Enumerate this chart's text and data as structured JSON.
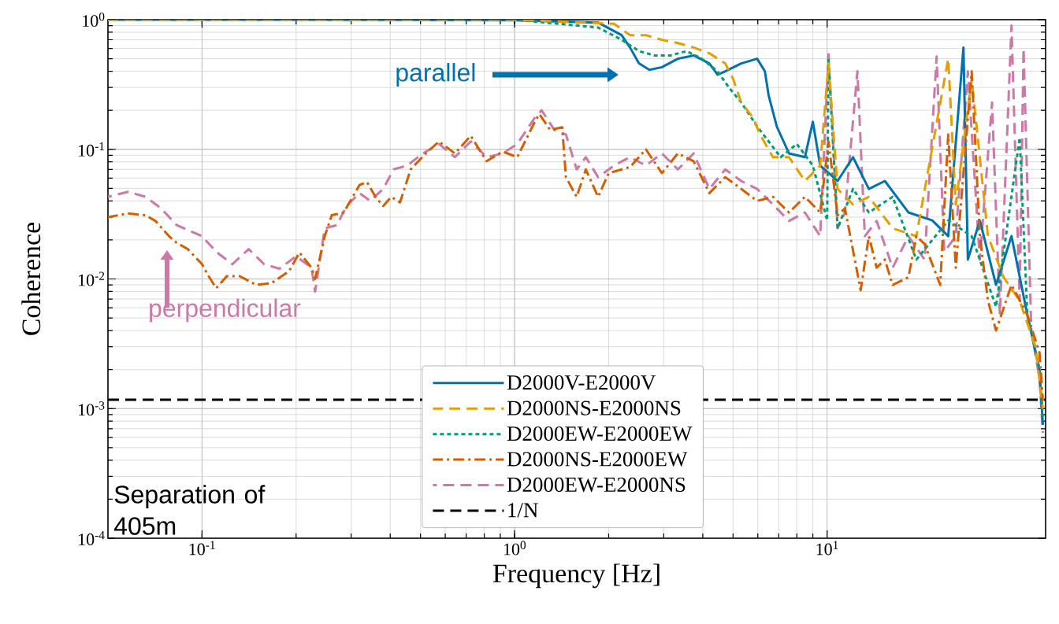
{
  "chart_data": {
    "type": "line",
    "xlabel": "Frequency [Hz]",
    "ylabel": "Coherence",
    "log": "xy",
    "grid": true,
    "legend": "bottom",
    "marker": "none",
    "xlim": [
      0.05,
      50
    ],
    "ylim": [
      0.0001,
      1
    ],
    "xticks": [
      {
        "value": 0.1,
        "label": "10$^{-1}$"
      },
      {
        "value": 1,
        "label": "10$^{0}$"
      },
      {
        "value": 10,
        "label": "10$^{1}$"
      }
    ],
    "yticks": [
      {
        "value": 0.0001,
        "label": "10$^{-4}$"
      },
      {
        "value": 0.001,
        "label": "10$^{-3}$"
      },
      {
        "value": 0.01,
        "label": "10$^{-2}$"
      },
      {
        "value": 0.1,
        "label": "10$^{-1}$"
      },
      {
        "value": 1,
        "label": "10$^{0}$"
      }
    ],
    "series": [
      {
        "name": "D2000V-E2000V",
        "color": "#0072b2",
        "line_style": "solid",
        "x": [
          0.05,
          0.224,
          1.0,
          1.85,
          2.2,
          2.34,
          2.5,
          2.7,
          2.96,
          3.33,
          3.74,
          4.2,
          4.46,
          4.72,
          5.31,
          5.97,
          6.32,
          6.5,
          6.9,
          7.55,
          8.49,
          9.0,
          9.5,
          10.8,
          12.1,
          13.6,
          15.3,
          18.2,
          21.7,
          24.4,
          27.3,
          28.2,
          30.8,
          34.7,
          38.9,
          43.7,
          47.8,
          49
        ],
        "values": [
          1.0,
          1.0,
          0.99,
          0.95,
          0.76,
          0.61,
          0.46,
          0.41,
          0.43,
          0.5,
          0.53,
          0.46,
          0.376,
          0.4,
          0.46,
          0.5,
          0.4,
          0.26,
          0.15,
          0.093,
          0.087,
          0.163,
          0.075,
          0.057,
          0.087,
          0.0495,
          0.057,
          0.0326,
          0.0283,
          0.0214,
          0.61,
          0.0141,
          0.0283,
          0.009,
          0.0214,
          0.0053,
          0.002,
          0.00075
        ]
      },
      {
        "name": "D2000NS-E2000NS",
        "color": "#e69f00",
        "line_style": "dashed",
        "x": [
          0.05,
          1.0,
          2.08,
          2.34,
          2.63,
          2.96,
          3.33,
          3.74,
          4.2,
          4.72,
          5.0,
          5.31,
          5.8,
          6.1,
          6.71,
          7.55,
          8.49,
          9.5,
          10.1,
          10.8,
          12.1,
          13.6,
          16.2,
          19.3,
          24.4,
          25.8,
          29.0,
          32.7,
          36.7,
          41.3,
          46.4,
          49
        ],
        "values": [
          1.0,
          1.0,
          0.93,
          0.76,
          0.76,
          0.7,
          0.66,
          0.61,
          0.55,
          0.46,
          0.35,
          0.23,
          0.175,
          0.13,
          0.087,
          0.087,
          0.057,
          0.075,
          0.46,
          0.0495,
          0.0375,
          0.043,
          0.0246,
          0.0214,
          0.5,
          0.0375,
          0.35,
          0.0214,
          0.0103,
          0.0068,
          0.003,
          0.001
        ]
      },
      {
        "name": "D2000EW-E2000EW",
        "color": "#009e73",
        "line_style": "dotted",
        "x": [
          0.05,
          1.0,
          1.85,
          2.2,
          2.5,
          2.8,
          3.15,
          3.55,
          3.97,
          4.46,
          4.85,
          5.31,
          5.97,
          6.5,
          7.1,
          8.0,
          9.0,
          10.0,
          10.1,
          10.8,
          12.1,
          13.6,
          16.2,
          19.3,
          24.4,
          29.0,
          34.7,
          41.3,
          43.7,
          47.8,
          49
        ],
        "values": [
          1.0,
          1.0,
          0.87,
          0.7,
          0.572,
          0.53,
          0.53,
          0.572,
          0.5,
          0.4,
          0.3,
          0.23,
          0.15,
          0.115,
          0.087,
          0.11,
          0.075,
          0.0283,
          0.5,
          0.0246,
          0.0495,
          0.0326,
          0.043,
          0.0141,
          0.0283,
          0.0214,
          0.0061,
          0.123,
          0.0053,
          0.002,
          0.00087
        ]
      },
      {
        "name": "D2000NS-E2000EW",
        "color": "#d55e00",
        "line_style": "dashdot",
        "x": [
          0.05,
          0.058,
          0.066,
          0.071,
          0.079,
          0.083,
          0.09,
          0.1,
          0.105,
          0.111,
          0.12,
          0.132,
          0.149,
          0.167,
          0.19,
          0.205,
          0.224,
          0.23,
          0.247,
          0.26,
          0.284,
          0.319,
          0.337,
          0.359,
          0.38,
          0.403,
          0.43,
          0.465,
          0.52,
          0.573,
          0.644,
          0.724,
          0.814,
          0.916,
          1.02,
          1.16,
          1.2,
          1.3,
          1.42,
          1.46,
          1.58,
          1.69,
          1.85,
          2.0,
          2.34,
          2.63,
          2.96,
          3.33,
          3.74,
          4.2,
          4.72,
          5.31,
          5.97,
          6.71,
          7.55,
          8.49,
          9.5,
          10.1,
          10.8,
          11.4,
          12.8,
          13.6,
          14.4,
          15.3,
          16.2,
          18.2,
          19.3,
          20.5,
          23.0,
          24.4,
          25.8,
          29.0,
          30.8,
          32.7,
          34.7,
          38.9,
          43.7,
          47.8,
          49
        ],
        "values": [
          0.03,
          0.032,
          0.031,
          0.028,
          0.021,
          0.019,
          0.017,
          0.013,
          0.0105,
          0.0085,
          0.0105,
          0.0105,
          0.009,
          0.0093,
          0.0115,
          0.016,
          0.0122,
          0.01,
          0.0214,
          0.031,
          0.0326,
          0.053,
          0.056,
          0.043,
          0.0365,
          0.043,
          0.039,
          0.07,
          0.093,
          0.115,
          0.093,
          0.127,
          0.081,
          0.096,
          0.087,
          0.163,
          0.187,
          0.141,
          0.148,
          0.061,
          0.043,
          0.07,
          0.043,
          0.0655,
          0.073,
          0.1,
          0.0655,
          0.093,
          0.081,
          0.046,
          0.061,
          0.0495,
          0.04,
          0.043,
          0.0326,
          0.043,
          0.0326,
          0.115,
          0.031,
          0.035,
          0.0082,
          0.0214,
          0.0122,
          0.0141,
          0.009,
          0.0103,
          0.0214,
          0.0186,
          0.009,
          0.13,
          0.0122,
          0.4,
          0.0214,
          0.0068,
          0.004,
          0.009,
          0.0053,
          0.0027,
          0.00115
        ]
      },
      {
        "name": "D2000EW-E2000NS",
        "color": "#cc79a7",
        "line_style": "dashed",
        "x": [
          0.05,
          0.058,
          0.066,
          0.074,
          0.083,
          0.1,
          0.111,
          0.125,
          0.141,
          0.158,
          0.177,
          0.2,
          0.224,
          0.23,
          0.247,
          0.27,
          0.29,
          0.319,
          0.345,
          0.38,
          0.41,
          0.453,
          0.509,
          0.573,
          0.644,
          0.724,
          0.814,
          0.916,
          1.02,
          1.16,
          1.22,
          1.34,
          1.46,
          1.58,
          1.69,
          1.85,
          2.08,
          2.34,
          2.63,
          2.96,
          3.33,
          3.74,
          4.2,
          4.72,
          5.31,
          5.97,
          6.71,
          7.55,
          8.49,
          9.5,
          10.1,
          10.8,
          11.4,
          12.5,
          13.2,
          14.4,
          16.2,
          18.2,
          20.5,
          22.4,
          23.7,
          25.8,
          28.2,
          30.8,
          33.7,
          35.7,
          38.9,
          41.3,
          42.5,
          45.0,
          47.8,
          49
        ],
        "values": [
          0.043,
          0.047,
          0.043,
          0.035,
          0.026,
          0.0214,
          0.0162,
          0.013,
          0.017,
          0.013,
          0.012,
          0.015,
          0.0122,
          0.008,
          0.0246,
          0.026,
          0.0365,
          0.046,
          0.04,
          0.0495,
          0.07,
          0.075,
          0.093,
          0.11,
          0.087,
          0.115,
          0.087,
          0.093,
          0.11,
          0.175,
          0.2,
          0.141,
          0.13,
          0.07,
          0.087,
          0.061,
          0.075,
          0.087,
          0.075,
          0.093,
          0.07,
          0.093,
          0.0495,
          0.07,
          0.057,
          0.0495,
          0.0375,
          0.028,
          0.0326,
          0.0214,
          0.54,
          0.0246,
          0.0326,
          0.4,
          0.0214,
          0.028,
          0.0122,
          0.0214,
          0.0141,
          0.52,
          0.0162,
          0.0214,
          0.4,
          0.0141,
          0.23,
          0.0053,
          0.9,
          0.0068,
          0.6,
          0.004,
          0.0017,
          0.00065
        ]
      }
    ],
    "ref_lines": [
      {
        "axis": "y",
        "value": 0.00117,
        "label": "1/N",
        "color": "#000000",
        "line_style": "dashed"
      }
    ],
    "annotations": [
      "parallel",
      "perpendicular",
      "Separation of 405m"
    ]
  }
}
